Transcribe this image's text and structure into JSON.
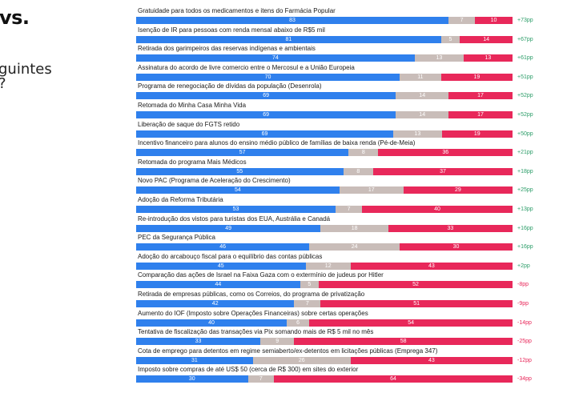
{
  "header": {
    "title_fragment": "vs.",
    "question_line1": "guintes",
    "question_line2": "?"
  },
  "colors": {
    "approve": "#2f80ed",
    "neutral": "#c9bdb9",
    "disapprove": "#e8285a",
    "diff_positive": "#2e9e6a",
    "diff_negative": "#e8285a"
  },
  "chart_data": {
    "type": "bar",
    "stacked": true,
    "orientation": "horizontal",
    "series_colors": [
      "#2f80ed",
      "#c9bdb9",
      "#e8285a"
    ],
    "rows": [
      {
        "label": "Gratuidade para todos os medicamentos e itens do Farmácia Popular",
        "values": [
          83,
          7,
          10
        ],
        "diff": "+73pp"
      },
      {
        "label": "Isenção de IR para pessoas com renda mensal abaixo de R$5 mil",
        "values": [
          81,
          5,
          14
        ],
        "diff": "+67pp"
      },
      {
        "label": "Retirada dos garimpeiros das reservas indígenas e ambientais",
        "values": [
          74,
          13,
          13
        ],
        "diff": "+61pp"
      },
      {
        "label": "Assinatura do acordo de livre comercio entre o Mercosul e a União Europeia",
        "values": [
          70,
          11,
          19
        ],
        "diff": "+51pp"
      },
      {
        "label": "Programa de renegociação de dívidas da população (Desenrola)",
        "values": [
          69,
          14,
          17
        ],
        "diff": "+52pp"
      },
      {
        "label": "Retomada do Minha Casa Minha Vida",
        "values": [
          69,
          14,
          17
        ],
        "diff": "+52pp"
      },
      {
        "label": "Liberação de saque do FGTS retido",
        "values": [
          69,
          13,
          19
        ],
        "diff": "+50pp"
      },
      {
        "label": "Incentivo financeiro para alunos do ensino médio público de famílias de baixa renda (Pé-de-Meia)",
        "values": [
          57,
          8,
          36
        ],
        "diff": "+21pp"
      },
      {
        "label": "Retomada do programa Mais Médicos",
        "values": [
          55,
          8,
          37
        ],
        "diff": "+18pp"
      },
      {
        "label": "Novo PAC (Programa de Aceleração do Crescimento)",
        "values": [
          54,
          17,
          29
        ],
        "diff": "+25pp"
      },
      {
        "label": "Adoção da Reforma Tributária",
        "values": [
          53,
          7,
          40
        ],
        "diff": "+13pp"
      },
      {
        "label": "Re-introdução dos vistos para turistas dos EUA, Austrália e Canadá",
        "values": [
          49,
          18,
          33
        ],
        "diff": "+16pp"
      },
      {
        "label": "PEC da Segurança Pública",
        "values": [
          46,
          24,
          30
        ],
        "diff": "+16pp"
      },
      {
        "label": "Adoção do arcabouço fiscal para o equilíbrio das contas públicas",
        "values": [
          45,
          12,
          43
        ],
        "diff": "+2pp"
      },
      {
        "label": "Comparação das ações de Israel na Faixa Gaza com o extermínio de judeus por Hitler",
        "values": [
          44,
          5,
          52
        ],
        "diff": "-8pp"
      },
      {
        "label": "Retirada de empresas públicas, como os Correios, do programa de privatização",
        "values": [
          42,
          7,
          51
        ],
        "diff": "-9pp"
      },
      {
        "label": "Aumento do IOF (Imposto sobre Operações Financeiras) sobre certas operações",
        "values": [
          40,
          6,
          54
        ],
        "diff": "-14pp"
      },
      {
        "label": "Tentativa de fiscalização das transações via Pix somando mais de R$ 5 mil no mês",
        "values": [
          33,
          9,
          58
        ],
        "diff": "-25pp"
      },
      {
        "label": "Cota de emprego para detentos em regime semiaberto/ex-detentos em licitações públicas (Emprega 347)",
        "values": [
          31,
          26,
          43
        ],
        "diff": "-12pp"
      },
      {
        "label": "Imposto sobre compras de até US$ 50 (cerca de R$ 300) em sites do exterior",
        "values": [
          30,
          7,
          64
        ],
        "diff": "-34pp"
      }
    ]
  }
}
